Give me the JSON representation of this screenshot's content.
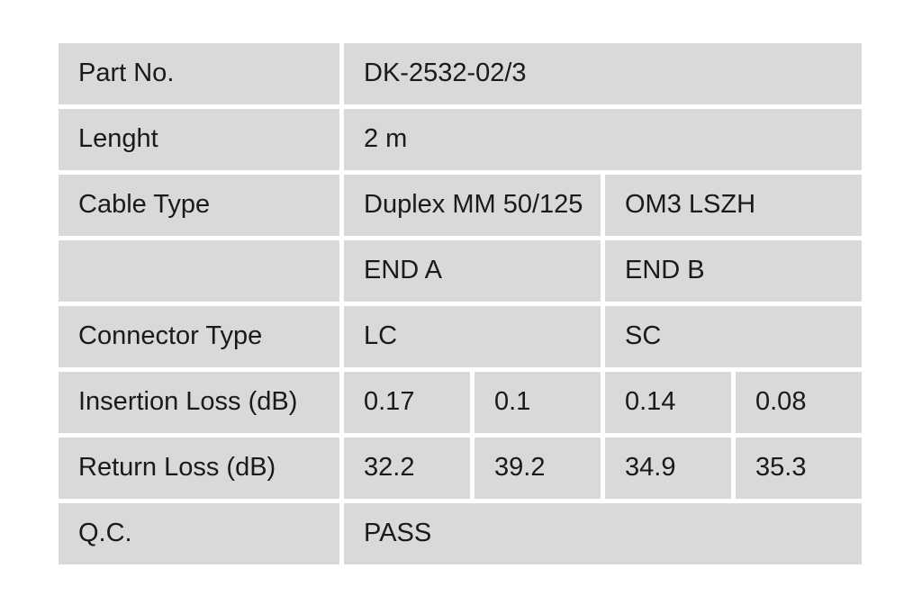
{
  "page": {
    "background": "#ffffff"
  },
  "table": {
    "cell_bg": "#d9d9d9",
    "text_color": "#1a1a1a",
    "rows": [
      {
        "label": "Part No.",
        "cells": [
          {
            "text": "DK-2532-02/3",
            "span": 4
          }
        ]
      },
      {
        "label": "Lenght",
        "cells": [
          {
            "text": "2 m",
            "span": 4
          }
        ]
      },
      {
        "label": "Cable Type",
        "cells": [
          {
            "text": "Duplex MM 50/125",
            "span": 2
          },
          {
            "text": "OM3 LSZH",
            "span": 2
          }
        ]
      },
      {
        "label": "",
        "cells": [
          {
            "text": "END A",
            "span": 2
          },
          {
            "text": "END B",
            "span": 2
          }
        ]
      },
      {
        "label": "Connector Type",
        "cells": [
          {
            "text": "LC",
            "span": 2
          },
          {
            "text": "SC",
            "span": 2
          }
        ]
      },
      {
        "label": "Insertion Loss (dB)",
        "cells": [
          {
            "text": "0.17",
            "span": 1
          },
          {
            "text": "0.1",
            "span": 1
          },
          {
            "text": "0.14",
            "span": 1
          },
          {
            "text": "0.08",
            "span": 1
          }
        ]
      },
      {
        "label": "Return Loss (dB)",
        "cells": [
          {
            "text": "32.2",
            "span": 1
          },
          {
            "text": "39.2",
            "span": 1
          },
          {
            "text": "34.9",
            "span": 1
          },
          {
            "text": "35.3",
            "span": 1
          }
        ]
      },
      {
        "label": "Q.C.",
        "cells": [
          {
            "text": "PASS",
            "span": 4
          }
        ]
      }
    ]
  }
}
